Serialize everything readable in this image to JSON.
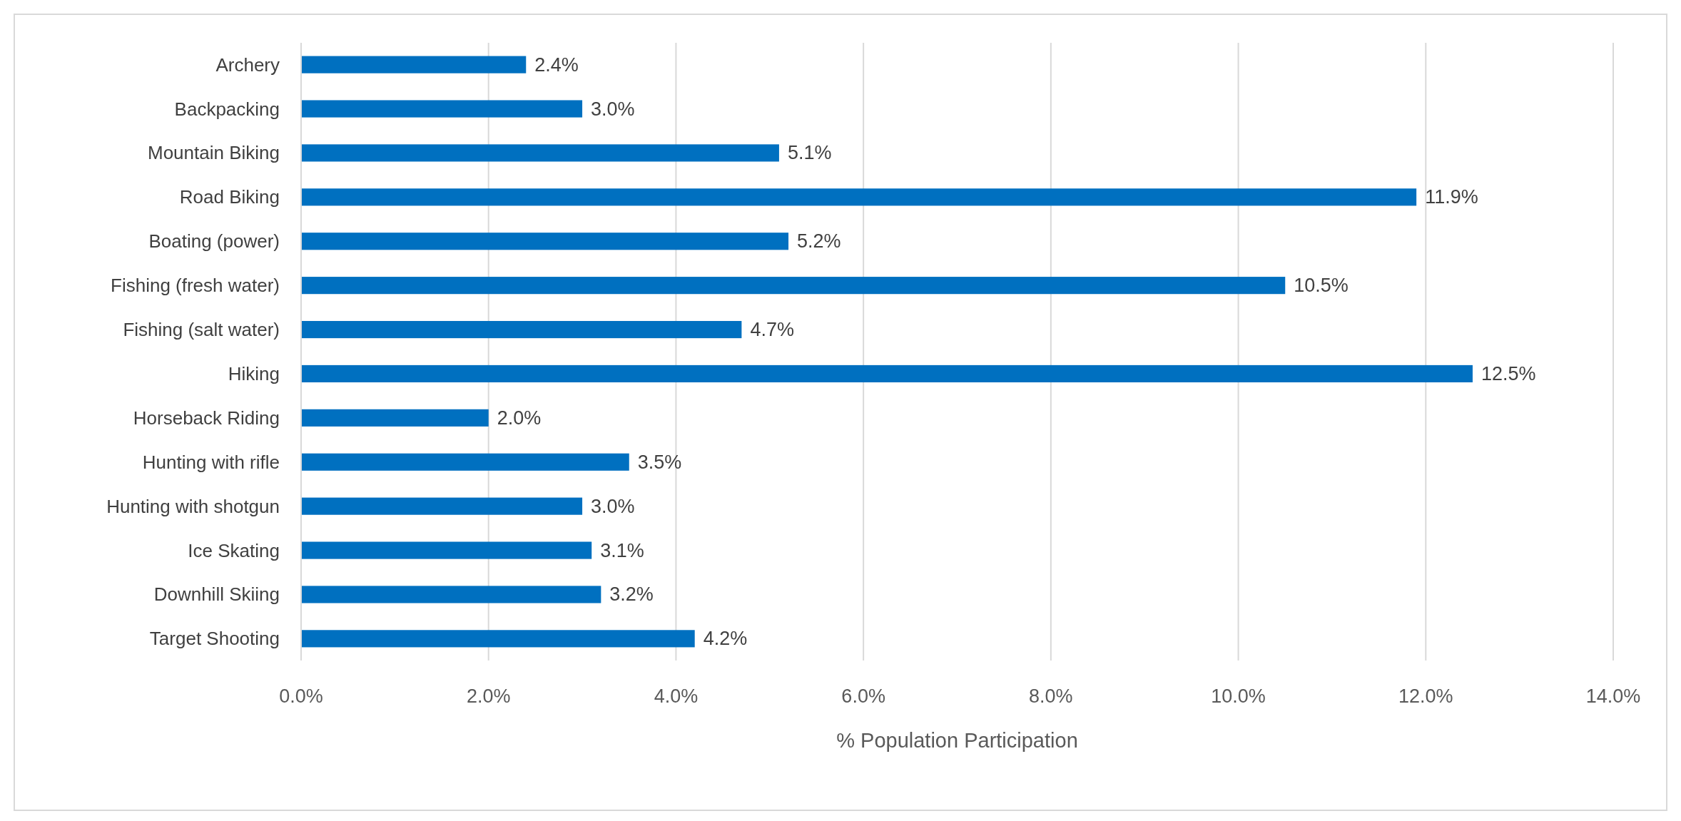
{
  "chart_data": {
    "type": "bar",
    "orientation": "horizontal",
    "xlabel": "% Population Participation",
    "categories": [
      "Archery",
      "Backpacking",
      "Mountain Biking",
      "Road Biking",
      "Boating (power)",
      "Fishing (fresh water)",
      "Fishing (salt water)",
      "Hiking",
      "Horseback Riding",
      "Hunting with rifle",
      "Hunting with shotgun",
      "Ice Skating",
      "Downhill Skiing",
      "Target Shooting"
    ],
    "values": [
      2.4,
      3.0,
      5.1,
      11.9,
      5.2,
      10.5,
      4.7,
      12.5,
      2.0,
      3.5,
      3.0,
      3.1,
      3.2,
      4.2
    ],
    "value_labels": [
      "2.4%",
      "3.0%",
      "5.1%",
      "11.9%",
      "5.2%",
      "10.5%",
      "4.7%",
      "12.5%",
      "2.0%",
      "3.5%",
      "3.0%",
      "3.1%",
      "3.2%",
      "4.2%"
    ],
    "color": "#0070c0",
    "xlim": [
      0,
      14
    ],
    "xticks": [
      {
        "value": 0,
        "label": "0.0%"
      },
      {
        "value": 2,
        "label": "2.0%"
      },
      {
        "value": 4,
        "label": "4.0%"
      },
      {
        "value": 6,
        "label": "6.0%"
      },
      {
        "value": 8,
        "label": "8.0%"
      },
      {
        "value": 10,
        "label": "10.0%"
      },
      {
        "value": 12,
        "label": "12.0%"
      },
      {
        "value": 14,
        "label": "14.0%"
      }
    ],
    "grid": "x"
  }
}
